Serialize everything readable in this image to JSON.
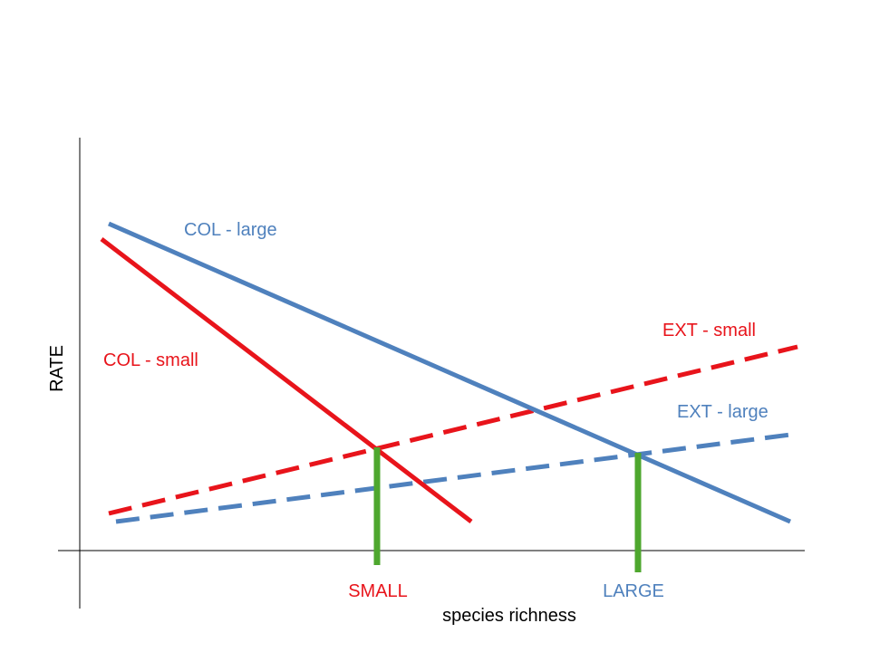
{
  "axes": {
    "y_label": "RATE",
    "x_label": "species richness"
  },
  "lines": {
    "col_large": {
      "label": "COL - large",
      "color": "#4f81bd"
    },
    "col_small": {
      "label": "COL - small",
      "color": "#e8141b"
    },
    "ext_small": {
      "label": "EXT - small",
      "color": "#e8141b"
    },
    "ext_large": {
      "label": "EXT - large",
      "color": "#4f81bd"
    }
  },
  "equilibria": {
    "small": {
      "label": "SMALL",
      "color": "#e8141b"
    },
    "large": {
      "label": "LARGE",
      "color": "#4f81bd"
    },
    "marker_color": "#4ea72e"
  }
}
